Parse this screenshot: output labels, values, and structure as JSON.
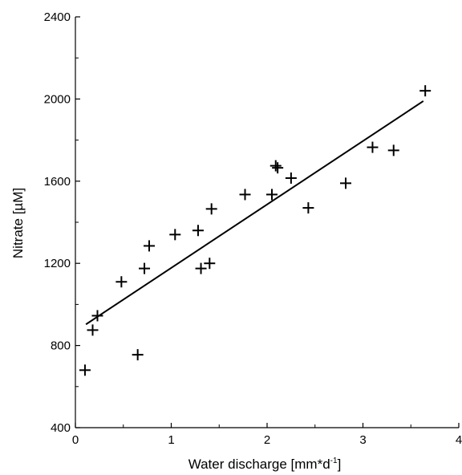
{
  "chart_data": {
    "type": "scatter",
    "xlabel_main": "Water discharge [mm*d",
    "xlabel_sup": "-1",
    "xlabel_close": "]",
    "ylabel": "Nitrate [µM]",
    "xlim": [
      0,
      4
    ],
    "ylim": [
      400,
      2400
    ],
    "xticks": [
      "0",
      "1",
      "2",
      "3",
      "4"
    ],
    "yticks": [
      "400",
      "800",
      "1200",
      "1600",
      "2000",
      "2400"
    ],
    "grid": false,
    "marker": "plus",
    "color": "#000000",
    "points": [
      {
        "x": 0.1,
        "y": 680
      },
      {
        "x": 0.18,
        "y": 875
      },
      {
        "x": 0.23,
        "y": 945
      },
      {
        "x": 0.48,
        "y": 1110
      },
      {
        "x": 0.65,
        "y": 755
      },
      {
        "x": 0.72,
        "y": 1175
      },
      {
        "x": 0.77,
        "y": 1285
      },
      {
        "x": 1.04,
        "y": 1340
      },
      {
        "x": 1.28,
        "y": 1360
      },
      {
        "x": 1.31,
        "y": 1175
      },
      {
        "x": 1.4,
        "y": 1200
      },
      {
        "x": 1.42,
        "y": 1465
      },
      {
        "x": 1.77,
        "y": 1535
      },
      {
        "x": 2.05,
        "y": 1535
      },
      {
        "x": 2.09,
        "y": 1675
      },
      {
        "x": 2.11,
        "y": 1665
      },
      {
        "x": 2.25,
        "y": 1615
      },
      {
        "x": 2.43,
        "y": 1470
      },
      {
        "x": 2.82,
        "y": 1590
      },
      {
        "x": 3.1,
        "y": 1765
      },
      {
        "x": 3.32,
        "y": 1750
      },
      {
        "x": 3.65,
        "y": 2040
      }
    ],
    "fit_line": {
      "x": [
        0.11,
        3.63
      ],
      "y": [
        903,
        1990
      ]
    }
  }
}
